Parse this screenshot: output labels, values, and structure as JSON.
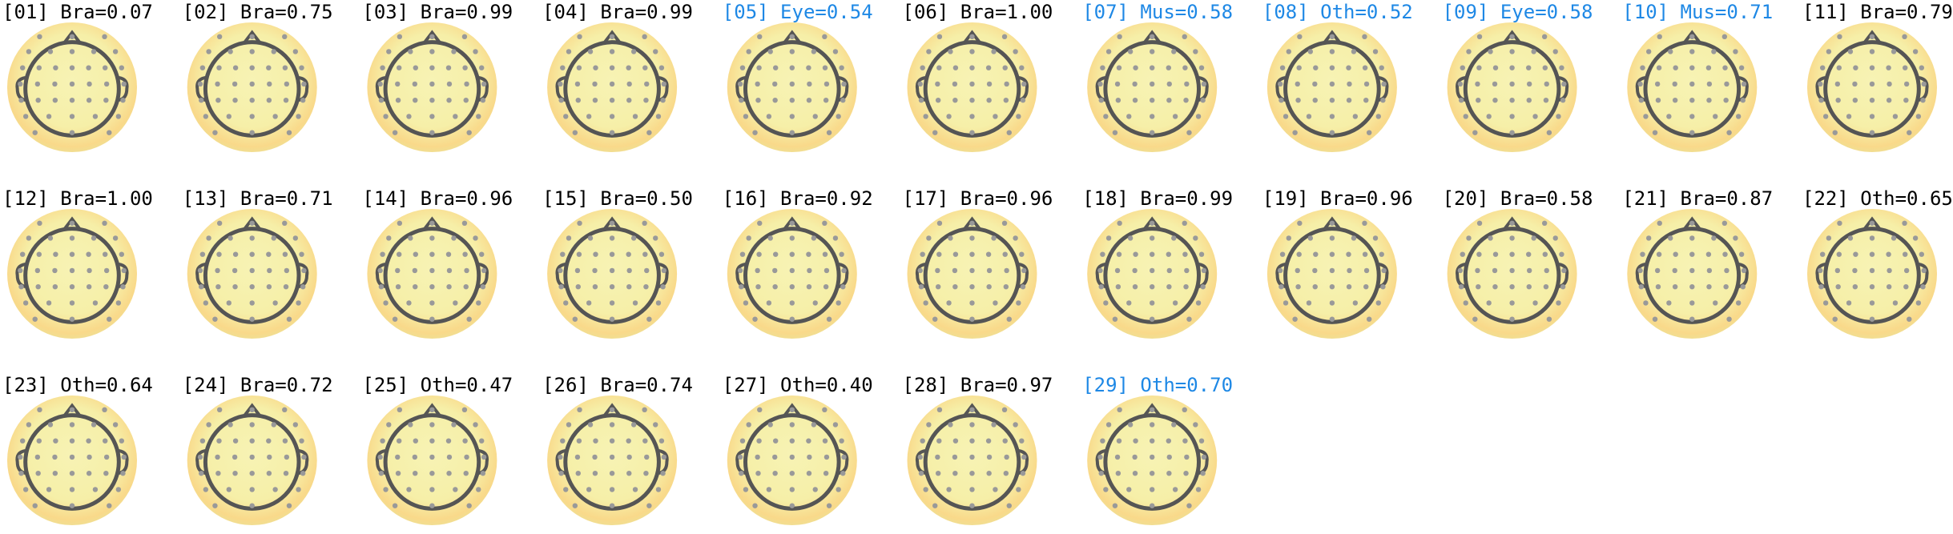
{
  "components": [
    {
      "label": "[01] Bra=0.07",
      "color": "#000000"
    },
    {
      "label": "[02] Bra=0.75",
      "color": "#000000"
    },
    {
      "label": "[03] Bra=0.99",
      "color": "#000000"
    },
    {
      "label": "[04] Bra=0.99",
      "color": "#000000"
    },
    {
      "label": "[05] Eye=0.54",
      "color": "#1e88e5"
    },
    {
      "label": "[06] Bra=1.00",
      "color": "#000000"
    },
    {
      "label": "[07] Mus=0.58",
      "color": "#1e88e5"
    },
    {
      "label": "[08] Oth=0.52",
      "color": "#1e88e5"
    },
    {
      "label": "[09] Eye=0.58",
      "color": "#1e88e5"
    },
    {
      "label": "[10] Mus=0.71",
      "color": "#1e88e5"
    },
    {
      "label": "[11] Bra=0.79",
      "color": "#000000"
    },
    {
      "label": "[12] Bra=1.00",
      "color": "#000000"
    },
    {
      "label": "[13] Bra=0.71",
      "color": "#000000"
    },
    {
      "label": "[14] Bra=0.96",
      "color": "#000000"
    },
    {
      "label": "[15] Bra=0.50",
      "color": "#000000"
    },
    {
      "label": "[16] Bra=0.92",
      "color": "#000000"
    },
    {
      "label": "[17] Bra=0.96",
      "color": "#000000"
    },
    {
      "label": "[18] Bra=0.99",
      "color": "#000000"
    },
    {
      "label": "[19] Bra=0.96",
      "color": "#000000"
    },
    {
      "label": "[20] Bra=0.58",
      "color": "#000000"
    },
    {
      "label": "[21] Bra=0.87",
      "color": "#000000"
    },
    {
      "label": "[22] Oth=0.65",
      "color": "#000000"
    },
    {
      "label": "[23] Oth=0.64",
      "color": "#000000"
    },
    {
      "label": "[24] Bra=0.72",
      "color": "#000000"
    },
    {
      "label": "[25] Oth=0.47",
      "color": "#000000"
    },
    {
      "label": "[26] Bra=0.74",
      "color": "#000000"
    },
    {
      "label": "[27] Oth=0.40",
      "color": "#000000"
    },
    {
      "label": "[28] Bra=0.97",
      "color": "#000000"
    },
    {
      "label": "[29] Oth=0.70",
      "color": "#1e88e5"
    }
  ]
}
